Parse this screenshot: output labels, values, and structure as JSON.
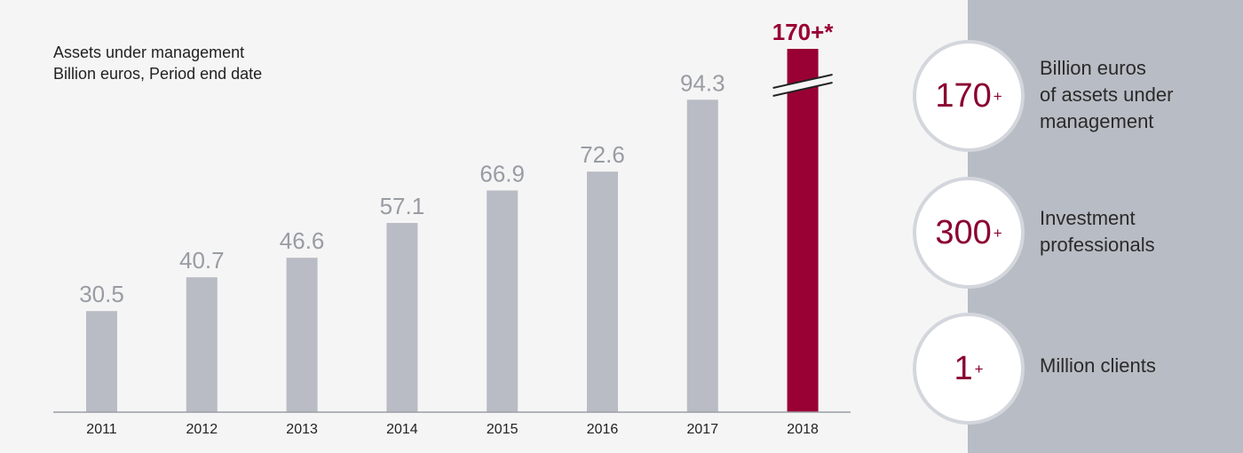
{
  "chart_data": {
    "type": "bar",
    "title": "Assets under management",
    "subtitle": "Billion euros, Period end date",
    "categories": [
      "2011",
      "2012",
      "2013",
      "2014",
      "2015",
      "2016",
      "2017",
      "2018"
    ],
    "values": [
      30.5,
      40.7,
      46.6,
      57.1,
      66.9,
      72.6,
      94.3,
      170
    ],
    "data_labels": [
      "30.5",
      "40.7",
      "46.6",
      "57.1",
      "66.9",
      "72.6",
      "94.3",
      "170+*"
    ],
    "axis_break_on": "2018",
    "grid": false,
    "bar_color": "#b9bcc4",
    "highlight_color": "#990033",
    "label_color": "#999ca3"
  },
  "stats": [
    {
      "value": "170",
      "suffix": "+",
      "label_lines": [
        "Billion euros",
        "of assets under",
        "management"
      ]
    },
    {
      "value": "300",
      "suffix": "+",
      "label_lines": [
        "Investment",
        "professionals"
      ]
    },
    {
      "value": "1",
      "suffix": "+",
      "label_lines": [
        "Million clients"
      ]
    }
  ]
}
